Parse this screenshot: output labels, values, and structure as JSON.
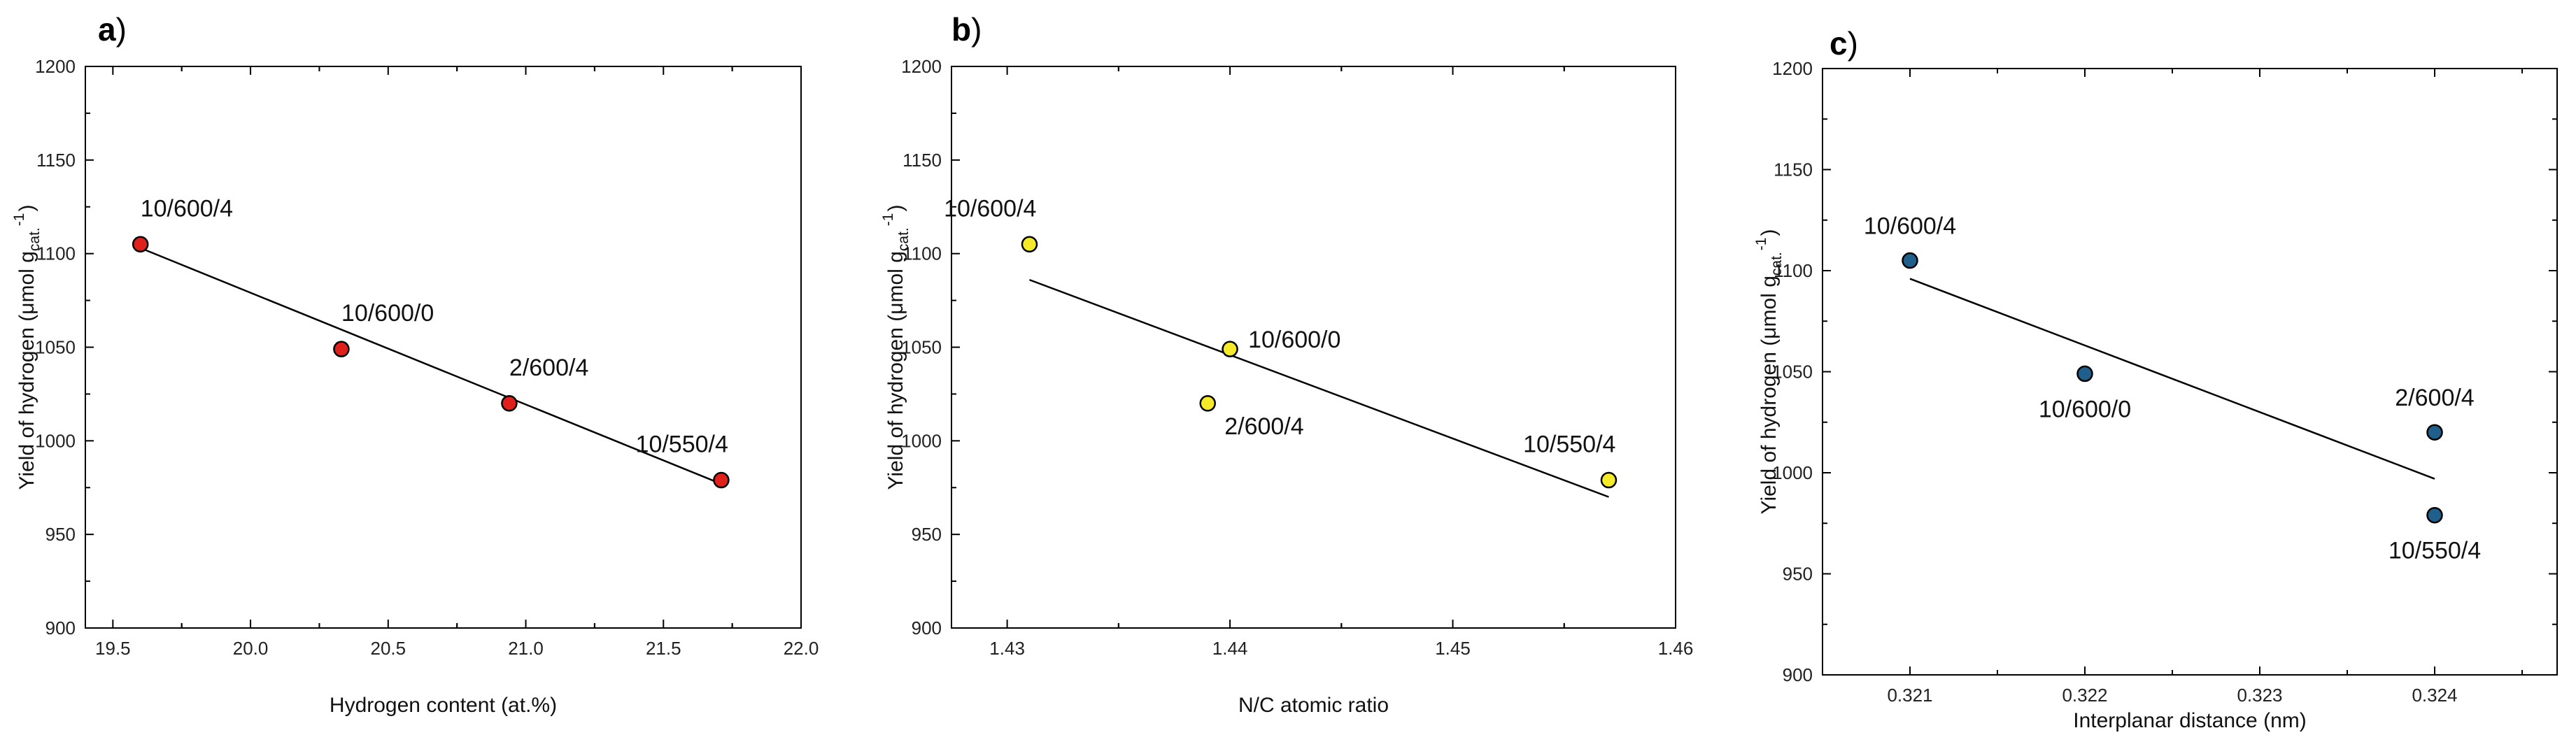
{
  "chart_data": [
    {
      "type": "scatter",
      "panel": "a",
      "panel_paren": ")",
      "xlabel": "Hydrogen content (at.%)",
      "ylabel_main": "Yield of hydrogen (μmol g",
      "ylabel_sub": "cat.",
      "ylabel_sup": "-1",
      "ylabel_close": ")",
      "xlim": [
        19.4,
        22.0
      ],
      "ylim": [
        900,
        1200
      ],
      "xticks": [
        "19.5",
        "20.0",
        "20.5",
        "21.0",
        "21.5",
        "22.0"
      ],
      "xtick_values": [
        19.5,
        20.0,
        20.5,
        21.0,
        21.5,
        22.0
      ],
      "yticks": [
        "900",
        "950",
        "1000",
        "1050",
        "1100",
        "1150",
        "1200"
      ],
      "ytick_values": [
        900,
        950,
        1000,
        1050,
        1100,
        1150,
        1200
      ],
      "marker_color": "#e0201b",
      "points": [
        {
          "label": "10/600/4",
          "x": 19.6,
          "y": 1105,
          "label_pos": "above-right"
        },
        {
          "label": "10/600/0",
          "x": 20.33,
          "y": 1049,
          "label_pos": "above-right"
        },
        {
          "label": "2/600/4",
          "x": 20.94,
          "y": 1020,
          "label_pos": "above-right"
        },
        {
          "label": "10/550/4",
          "x": 21.71,
          "y": 979,
          "label_pos": "above-left"
        }
      ],
      "fit_line": {
        "x": [
          19.6,
          21.71
        ],
        "y": [
          1103,
          977
        ]
      }
    },
    {
      "type": "scatter",
      "panel": "b",
      "panel_paren": ")",
      "xlabel": "N/C atomic ratio",
      "ylabel_main": "Yield of hydrogen (μmol g",
      "ylabel_sub": "cat.",
      "ylabel_sup": "-1",
      "ylabel_close": ")",
      "xlim": [
        1.4275,
        1.46
      ],
      "ylim": [
        900,
        1200
      ],
      "xticks": [
        "1.43",
        "1.44",
        "1.45",
        "1.46"
      ],
      "xtick_values": [
        1.43,
        1.44,
        1.45,
        1.46
      ],
      "yticks": [
        "900",
        "950",
        "1000",
        "1050",
        "1100",
        "1150",
        "1200"
      ],
      "ytick_values": [
        900,
        950,
        1000,
        1050,
        1100,
        1150,
        1200
      ],
      "marker_color": "#f4ea2a",
      "points": [
        {
          "label": "10/600/4",
          "x": 1.431,
          "y": 1105,
          "label_pos": "above-left"
        },
        {
          "label": "10/600/0",
          "x": 1.44,
          "y": 1049,
          "label_pos": "right"
        },
        {
          "label": "2/600/4",
          "x": 1.439,
          "y": 1020,
          "label_pos": "below-right"
        },
        {
          "label": "10/550/4",
          "x": 1.457,
          "y": 979,
          "label_pos": "above-left"
        }
      ],
      "fit_line": {
        "x": [
          1.431,
          1.457
        ],
        "y": [
          1086,
          970
        ]
      }
    },
    {
      "type": "scatter",
      "panel": "c",
      "panel_paren": ")",
      "xlabel": "Interplanar distance (nm)",
      "ylabel_main": "Yield of hydrogen (μmol g",
      "ylabel_sub": "cat.",
      "ylabel_sup": "-1",
      "ylabel_close": ")",
      "xlim": [
        0.3205,
        0.3247
      ],
      "ylim": [
        900,
        1200
      ],
      "xticks": [
        "0.321",
        "0.322",
        "0.323",
        "0.324"
      ],
      "xtick_values": [
        0.321,
        0.322,
        0.323,
        0.324
      ],
      "yticks": [
        "900",
        "950",
        "1000",
        "1050",
        "1100",
        "1150",
        "1200"
      ],
      "ytick_values": [
        900,
        950,
        1000,
        1050,
        1100,
        1150,
        1200
      ],
      "marker_color": "#1f5f8b",
      "points": [
        {
          "label": "10/600/4",
          "x": 0.321,
          "y": 1105,
          "label_pos": "above-center"
        },
        {
          "label": "10/600/0",
          "x": 0.322,
          "y": 1049,
          "label_pos": "below-center"
        },
        {
          "label": "2/600/4",
          "x": 0.324,
          "y": 1020,
          "label_pos": "above-center"
        },
        {
          "label": "10/550/4",
          "x": 0.324,
          "y": 979,
          "label_pos": "below-center"
        }
      ],
      "fit_line": {
        "x": [
          0.321,
          0.324
        ],
        "y": [
          1096,
          997
        ]
      }
    }
  ]
}
